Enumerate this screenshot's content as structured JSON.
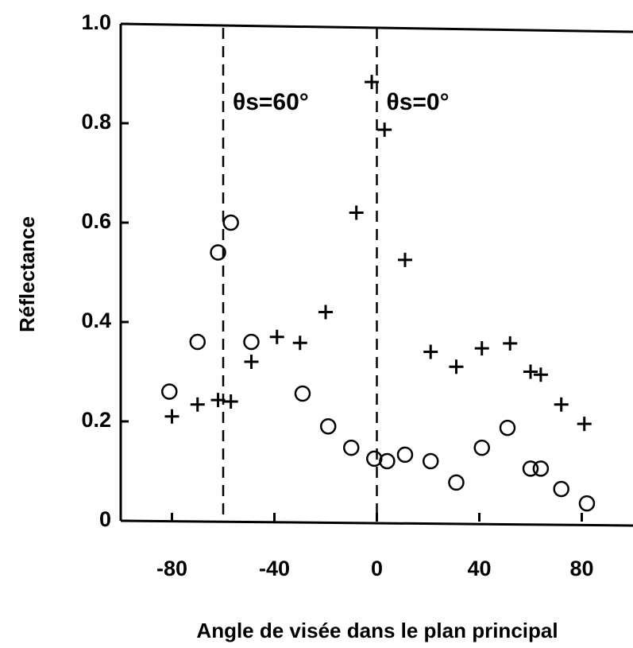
{
  "chart_data": {
    "type": "scatter",
    "xlabel": "Angle de visée dans le plan principal",
    "ylabel": "Réflectance",
    "xlim": [
      -100,
      100
    ],
    "ylim": [
      0,
      1
    ],
    "xticks": [
      -80,
      -40,
      0,
      40,
      80
    ],
    "yticks": [
      0,
      0.2,
      0.4,
      0.6,
      0.8,
      {
        "value": 1,
        "label": "1.0"
      }
    ],
    "vlines": [
      {
        "x": -60,
        "label": "θs=60°"
      },
      {
        "x": 0,
        "label": "θs=0°"
      }
    ],
    "series": [
      {
        "marker": "circle",
        "color": "#000000",
        "x": [
          -81,
          -70,
          -62,
          -57,
          -49,
          -29,
          -19,
          -10,
          -1,
          4,
          11,
          21,
          31,
          41,
          51,
          60,
          64,
          72,
          82
        ],
        "values": [
          0.26,
          0.36,
          0.54,
          0.6,
          0.36,
          0.256,
          0.19,
          0.147,
          0.125,
          0.12,
          0.133,
          0.12,
          0.077,
          0.147,
          0.187,
          0.105,
          0.105,
          0.064,
          0.035
        ]
      },
      {
        "marker": "plus",
        "color": "#000000",
        "x": [
          -80,
          -70,
          -62,
          -57,
          -49,
          -39,
          -30,
          -20,
          -8,
          -2,
          3,
          11,
          21,
          31,
          41,
          52,
          60,
          64,
          72,
          81
        ],
        "values": [
          0.21,
          0.234,
          0.243,
          0.24,
          0.32,
          0.37,
          0.358,
          0.42,
          0.62,
          0.883,
          0.787,
          0.525,
          0.34,
          0.31,
          0.347,
          0.357,
          0.3,
          0.294,
          0.234,
          0.195
        ]
      }
    ]
  }
}
